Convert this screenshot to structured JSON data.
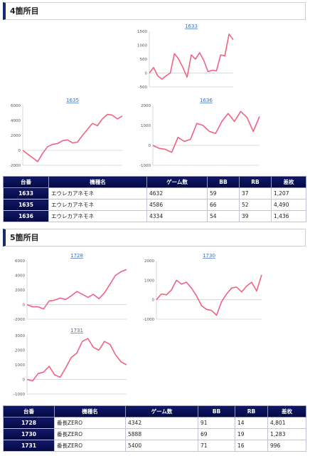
{
  "sections": [
    {
      "heading": "4箇所目",
      "charts": [
        {
          "title": "1633",
          "yticks": [
            "1500",
            "1000",
            "500",
            "0",
            "-500"
          ],
          "ylim": [
            -500,
            1500
          ],
          "values": [
            0,
            200,
            -100,
            -220,
            -100,
            0,
            700,
            500,
            200,
            -150,
            650,
            500,
            730,
            450,
            50,
            100,
            80,
            650,
            620,
            1400,
            1200
          ]
        },
        {
          "title": "1635",
          "yticks": [
            "6000",
            "4000",
            "2000",
            "0",
            "-2000"
          ],
          "ylim": [
            -2000,
            6000
          ],
          "values": [
            0,
            -500,
            -1000,
            -1500,
            -400,
            500,
            800,
            900,
            1300,
            1400,
            1000,
            1100,
            2000,
            2800,
            3600,
            3300,
            4200,
            4800,
            4700,
            4200,
            4590
          ]
        },
        {
          "title": "1636",
          "yticks": [
            "2000",
            "1000",
            "0",
            "-1000"
          ],
          "ylim": [
            -1000,
            2000
          ],
          "values": [
            0,
            -150,
            -200,
            -350,
            400,
            200,
            300,
            1100,
            1000,
            700,
            600,
            1200,
            1600,
            1200,
            1700,
            1400,
            700,
            1450
          ]
        }
      ],
      "table": {
        "headers": [
          "台番",
          "機種名",
          "ゲーム数",
          "BB",
          "RB",
          "差枚"
        ],
        "rows": [
          [
            "1633",
            "エウレカアネモネ",
            "4632",
            "59",
            "37",
            "1,207"
          ],
          [
            "1635",
            "エウレカアネモネ",
            "4586",
            "66",
            "52",
            "4,490"
          ],
          [
            "1636",
            "エウレカアネモネ",
            "4334",
            "54",
            "39",
            "1,436"
          ]
        ]
      }
    },
    {
      "heading": "5箇所目",
      "charts": [
        {
          "title": "1728",
          "yticks": [
            "6000",
            "4000",
            "2000",
            "0",
            "-2000"
          ],
          "ylim": [
            -2000,
            6000
          ],
          "values": [
            0,
            -300,
            -300,
            -600,
            500,
            600,
            900,
            700,
            1200,
            1800,
            1400,
            1000,
            1400,
            800,
            1600,
            2800,
            4000,
            4500,
            4800
          ]
        },
        {
          "title": "1730",
          "yticks": [
            "2000",
            "1000",
            "0",
            "-1000"
          ],
          "ylim": [
            -1000,
            2000
          ],
          "values": [
            0,
            300,
            250,
            500,
            1000,
            800,
            900,
            600,
            200,
            -300,
            -500,
            -550,
            -800,
            -100,
            300,
            600,
            650,
            400,
            700,
            900,
            450,
            1280
          ]
        },
        {
          "title": "1731",
          "yticks": [
            "3000",
            "2000",
            "1000",
            "0",
            "-1000"
          ],
          "ylim": [
            -1000,
            3000
          ],
          "values": [
            0,
            -100,
            400,
            500,
            900,
            300,
            150,
            800,
            1500,
            1800,
            2600,
            2800,
            2200,
            2000,
            2600,
            2400,
            1700,
            1200,
            1000
          ]
        }
      ],
      "table": {
        "headers": [
          "台番",
          "機種名",
          "ゲーム数",
          "BB",
          "RB",
          "差枚"
        ],
        "rows": [
          [
            "1728",
            "番長ZERO",
            "4342",
            "91",
            "14",
            "4,801"
          ],
          [
            "1730",
            "番長ZERO",
            "5888",
            "69",
            "19",
            "1,283"
          ],
          [
            "1731",
            "番長ZERO",
            "5400",
            "71",
            "16",
            "996"
          ]
        ]
      }
    }
  ],
  "colors": {
    "line": "#f06283",
    "axis": "#cfcfcf",
    "title": "#3e6fc4",
    "header_bg": "#0b1256"
  }
}
